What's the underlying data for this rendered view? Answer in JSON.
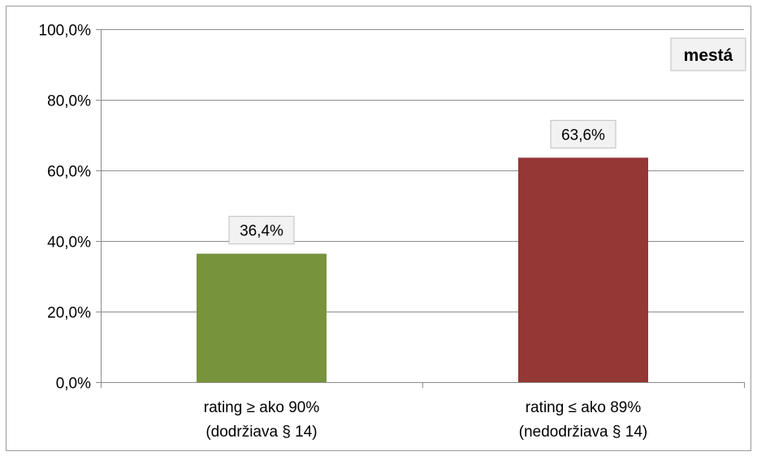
{
  "chart_data": {
    "type": "bar",
    "categories": [
      [
        "rating ≥ ako 90%",
        "(dodržiava § 14)"
      ],
      [
        "rating ≤ ako 89%",
        "(nedodržiava § 14)"
      ]
    ],
    "values": [
      36.4,
      63.6
    ],
    "data_labels": [
      "36,4%",
      "63,6%"
    ],
    "bar_colors": [
      "#77933C",
      "#953735"
    ],
    "ylim": [
      0,
      100
    ],
    "yticks": [
      0,
      20,
      40,
      60,
      80,
      100
    ],
    "ytick_labels": [
      "0,0%",
      "20,0%",
      "40,0%",
      "60,0%",
      "80,0%",
      "100,0%"
    ],
    "grid": true,
    "legend": {
      "text": "mestá",
      "placement": "top-right"
    },
    "title": "",
    "xlabel": "",
    "ylabel": ""
  }
}
